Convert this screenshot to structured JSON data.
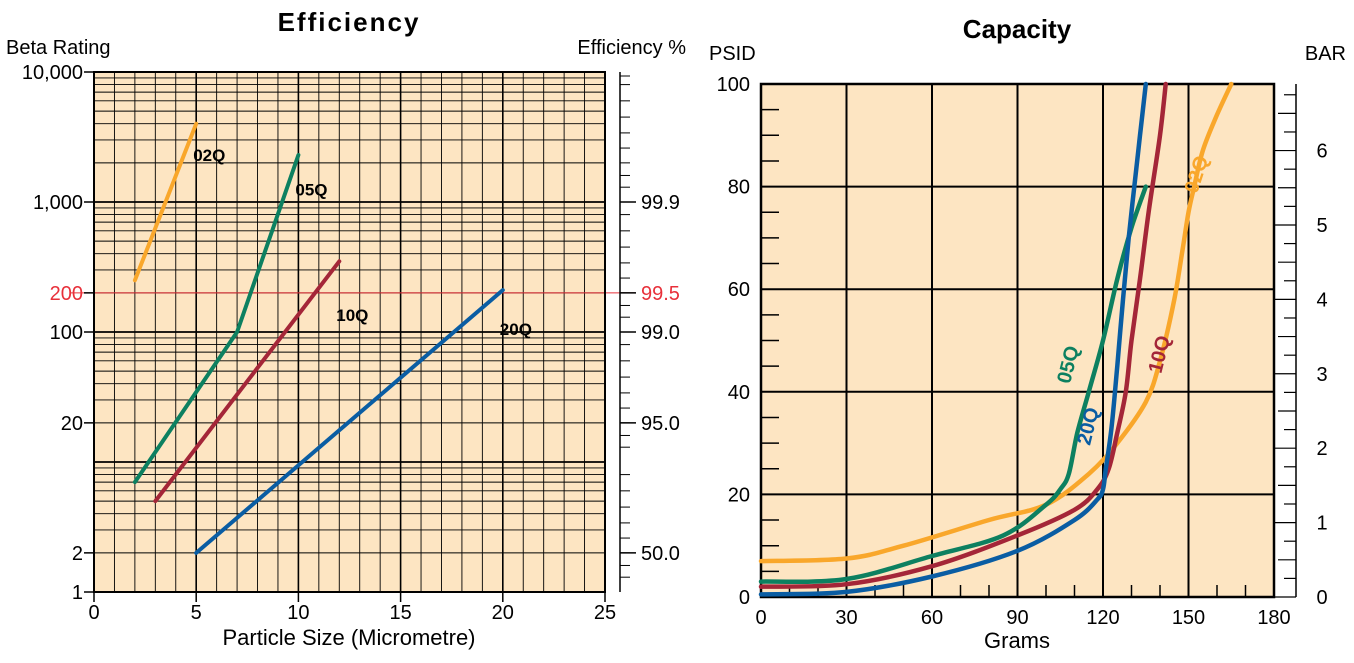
{
  "colors": {
    "plot_bg": "#FDE5C2",
    "grid": "#000000",
    "highlight": "#E8303A",
    "s02Q": "#F9A72B",
    "s05Q": "#0D8060",
    "s10Q": "#A42638",
    "s20Q": "#0A5DA3"
  },
  "chart_data": [
    {
      "type": "line",
      "title": "Efficiency",
      "ylabel_left": "Beta Rating",
      "ylabel_right": "Efficiency %",
      "xlabel": "Particle Size (Micrometre)",
      "xlim": [
        0,
        25
      ],
      "ylim": [
        1,
        10000
      ],
      "yscale": "log",
      "xticks": [
        0,
        5,
        10,
        15,
        20,
        25
      ],
      "yticks_left": [
        {
          "value": 1,
          "label": "1"
        },
        {
          "value": 2,
          "label": "2"
        },
        {
          "value": 20,
          "label": "20"
        },
        {
          "value": 100,
          "label": "100"
        },
        {
          "value": 200,
          "label": "200",
          "highlight": true
        },
        {
          "value": 1000,
          "label": "1,000"
        },
        {
          "value": 10000,
          "label": "10,000"
        }
      ],
      "yticks_right": [
        {
          "beta": 2,
          "label": "50.0"
        },
        {
          "beta": 20,
          "label": "95.0"
        },
        {
          "beta": 100,
          "label": "99.0"
        },
        {
          "beta": 200,
          "label": "99.5",
          "highlight": true
        },
        {
          "beta": 1000,
          "label": "99.9"
        }
      ],
      "reference_line": {
        "beta": 200
      },
      "grid": true,
      "series": [
        {
          "name": "02Q",
          "x": [
            2,
            5
          ],
          "y": [
            250,
            4000
          ],
          "label_at": [
            5,
            2300
          ]
        },
        {
          "name": "05Q",
          "x": [
            2,
            7,
            10
          ],
          "y": [
            7,
            100,
            2300
          ],
          "label_at": [
            10,
            1250
          ]
        },
        {
          "name": "10Q",
          "x": [
            3,
            12
          ],
          "y": [
            5,
            350
          ],
          "label_at": [
            12,
            135
          ]
        },
        {
          "name": "20Q",
          "x": [
            5,
            20
          ],
          "y": [
            2,
            210
          ],
          "label_at": [
            20,
            105
          ]
        }
      ]
    },
    {
      "type": "line",
      "title": "Capacity",
      "ylabel_left": "PSID",
      "ylabel_right": "BAR",
      "xlabel": "Grams",
      "xlim": [
        0,
        180
      ],
      "ylim": [
        0,
        100
      ],
      "xticks": [
        0,
        30,
        60,
        90,
        120,
        150,
        180
      ],
      "yticks_left": [
        0,
        20,
        40,
        60,
        80,
        100
      ],
      "yticks_right": [
        0,
        1,
        2,
        3,
        4,
        5,
        6
      ],
      "grid": true,
      "series": [
        {
          "name": "02Q",
          "x": [
            0,
            30,
            50,
            80,
            100,
            115,
            125,
            135,
            140,
            145,
            148,
            150,
            152,
            155,
            160,
            165
          ],
          "y": [
            7,
            7.5,
            10,
            15,
            18,
            24,
            30,
            38,
            46,
            58,
            68,
            75,
            80,
            87,
            94,
            100
          ],
          "label_pos": [
            155,
            82
          ],
          "label_rot": -72
        },
        {
          "name": "05Q",
          "x": [
            0,
            30,
            60,
            85,
            100,
            105,
            108,
            111,
            115,
            120,
            125,
            130,
            135
          ],
          "y": [
            3,
            3.5,
            8,
            12,
            18,
            21,
            24,
            32,
            40,
            50,
            62,
            72,
            80
          ],
          "label_pos": [
            110,
            45
          ],
          "label_rot": -76
        },
        {
          "name": "10Q",
          "x": [
            0,
            30,
            60,
            90,
            110,
            118,
            122,
            125,
            128,
            130,
            133,
            136,
            140,
            142
          ],
          "y": [
            2,
            2.5,
            6,
            12,
            17,
            21,
            25,
            32,
            40,
            50,
            62,
            75,
            90,
            100
          ],
          "label_pos": [
            142,
            47
          ],
          "label_rot": -76
        },
        {
          "name": "20Q",
          "x": [
            0,
            30,
            60,
            90,
            110,
            118,
            120,
            121,
            123,
            125,
            127,
            129,
            131,
            133,
            135
          ],
          "y": [
            0.5,
            1,
            4,
            9,
            15,
            19,
            21,
            25,
            33,
            45,
            58,
            70,
            80,
            90,
            100
          ],
          "label_pos": [
            117,
            33
          ],
          "label_rot": -76
        }
      ]
    }
  ]
}
